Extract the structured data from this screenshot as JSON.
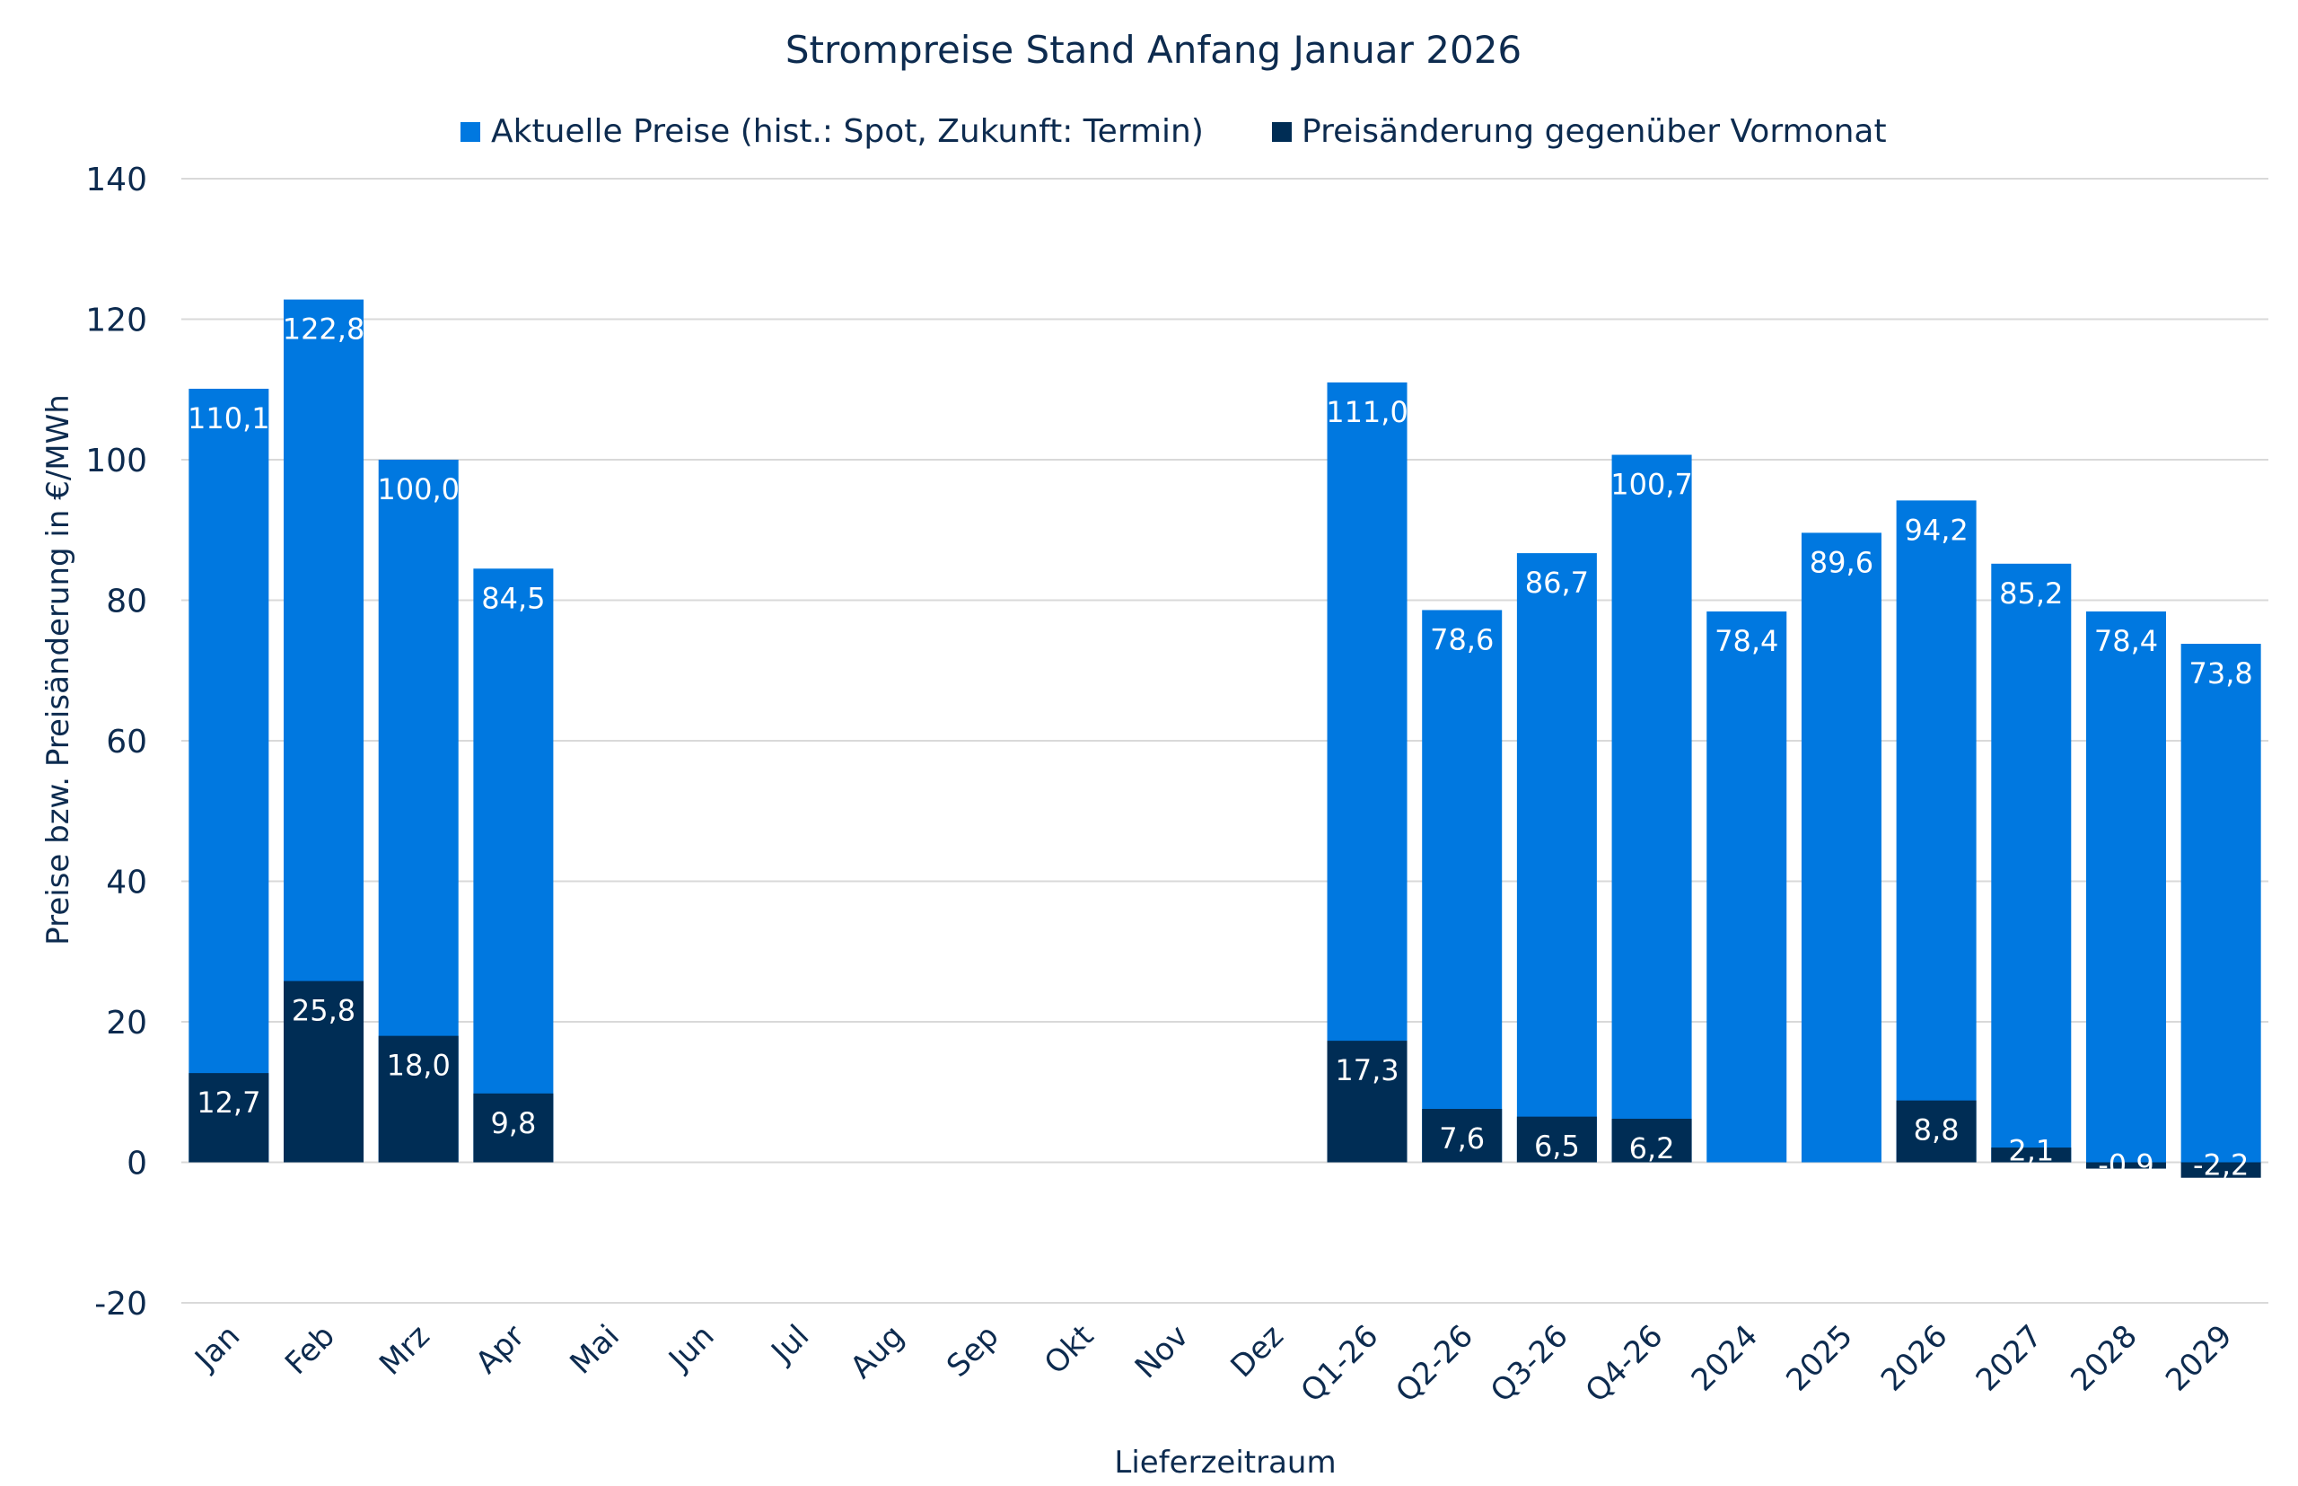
{
  "chart_data": {
    "type": "bar",
    "stacking": "overlay",
    "title": "Strompreise Stand Anfang Januar 2026",
    "xlabel": "Lieferzeitraum",
    "ylabel": "Preise bzw. Preisänderung in €/MWh",
    "ylim": [
      -20,
      140
    ],
    "yticks": [
      -20,
      0,
      20,
      40,
      60,
      80,
      100,
      120,
      140
    ],
    "grid": true,
    "legend_position": "top",
    "categories": [
      "Jan",
      "Feb",
      "Mrz",
      "Apr",
      "Mai",
      "Jun",
      "Jul",
      "Aug",
      "Sep",
      "Okt",
      "Nov",
      "Dez",
      "Q1-26",
      "Q2-26",
      "Q3-26",
      "Q4-26",
      "2024",
      "2025",
      "2026",
      "2027",
      "2028",
      "2029"
    ],
    "series": [
      {
        "name": "Aktuelle Preise (hist.: Spot, Zukunft: Termin)",
        "color": "#0078e0",
        "values": [
          110.1,
          122.8,
          100.0,
          84.5,
          null,
          null,
          null,
          null,
          null,
          null,
          null,
          null,
          111.0,
          78.6,
          86.7,
          100.7,
          78.4,
          89.6,
          94.2,
          85.2,
          78.4,
          73.8
        ]
      },
      {
        "name": "Preisänderung gegenüber Vormonat",
        "color": "#002d55",
        "values": [
          12.7,
          25.8,
          18.0,
          9.8,
          null,
          null,
          null,
          null,
          null,
          null,
          null,
          null,
          17.3,
          7.6,
          6.5,
          6.2,
          null,
          null,
          8.8,
          2.1,
          -0.9,
          -2.2
        ]
      }
    ]
  }
}
